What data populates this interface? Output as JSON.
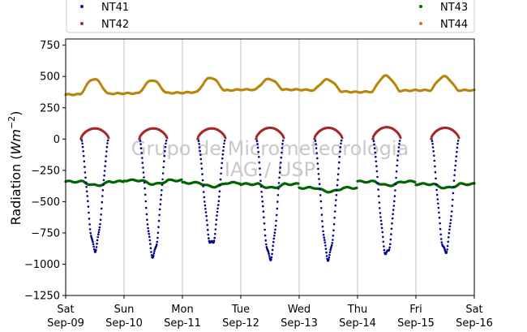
{
  "chart_data": {
    "type": "scatter",
    "ylabel": "Radiation (Wm⁻²)",
    "ylabel_main": "Radiation (",
    "ylabel_unit": "Wm",
    "ylabel_exp": "−2",
    "ylabel_close": ")",
    "ylim": [
      -1250,
      800
    ],
    "yticks": [
      -1250,
      -1000,
      -750,
      -500,
      -250,
      0,
      250,
      500,
      750
    ],
    "ytick_labels": [
      "−1250",
      "−1000",
      "−750",
      "−500",
      "−250",
      "0",
      "250",
      "500",
      "750"
    ],
    "xlim_days": [
      0,
      7
    ],
    "xticks": [
      {
        "day": 0,
        "weekday": "Sat",
        "date": "Sep-09"
      },
      {
        "day": 1,
        "weekday": "Sun",
        "date": "Sep-10"
      },
      {
        "day": 2,
        "weekday": "Mon",
        "date": "Sep-11"
      },
      {
        "day": 3,
        "weekday": "Tue",
        "date": "Sep-12"
      },
      {
        "day": 4,
        "weekday": "Wed",
        "date": "Sep-13"
      },
      {
        "day": 5,
        "weekday": "Thu",
        "date": "Sep-14"
      },
      {
        "day": 6,
        "weekday": "Fri",
        "date": "Sep-15"
      },
      {
        "day": 7,
        "weekday": "Sat",
        "date": "Sep-16"
      }
    ],
    "grid": "vertical",
    "legend_placement": "top",
    "watermark": [
      "Grupo de Micrometeorologia",
      "IAG / USP"
    ],
    "series": [
      {
        "name": "NT41",
        "color": "#00008b",
        "daily": [
          {
            "day": 0,
            "noon_value": -880
          },
          {
            "day": 1,
            "noon_value": -930
          },
          {
            "day": 2,
            "noon_value": -840
          },
          {
            "day": 3,
            "noon_value": -950
          },
          {
            "day": 4,
            "noon_value": -950
          },
          {
            "day": 5,
            "noon_value": -920
          },
          {
            "day": 6,
            "noon_value": -900
          }
        ]
      },
      {
        "name": "NT42",
        "color": "#a52a2a",
        "daily": [
          {
            "day": 0,
            "noon_value": 85
          },
          {
            "day": 1,
            "noon_value": 85
          },
          {
            "day": 2,
            "noon_value": 85
          },
          {
            "day": 3,
            "noon_value": 90
          },
          {
            "day": 4,
            "noon_value": 90
          },
          {
            "day": 5,
            "noon_value": 95
          },
          {
            "day": 6,
            "noon_value": 90
          }
        ]
      },
      {
        "name": "NT43",
        "color": "#006400",
        "daily": [
          {
            "day": 0,
            "baseline": -340
          },
          {
            "day": 1,
            "baseline": -330
          },
          {
            "day": 2,
            "baseline": -350
          },
          {
            "day": 3,
            "baseline": -360
          },
          {
            "day": 4,
            "baseline": -390
          },
          {
            "day": 5,
            "baseline": -340
          },
          {
            "day": 6,
            "baseline": -360
          }
        ]
      },
      {
        "name": "NT44",
        "color": "#b8860b",
        "daily": [
          {
            "day": 0,
            "night_value": 355,
            "noon_value": 480
          },
          {
            "day": 1,
            "night_value": 365,
            "noon_value": 470
          },
          {
            "day": 2,
            "night_value": 370,
            "noon_value": 490
          },
          {
            "day": 3,
            "night_value": 395,
            "noon_value": 480
          },
          {
            "day": 4,
            "night_value": 395,
            "noon_value": 475
          },
          {
            "day": 5,
            "night_value": 375,
            "noon_value": 505
          },
          {
            "day": 6,
            "night_value": 390,
            "noon_value": 500
          }
        ]
      }
    ]
  }
}
